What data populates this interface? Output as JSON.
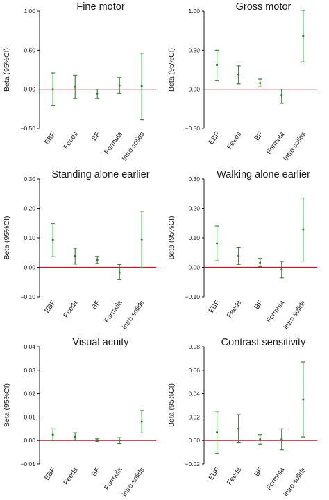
{
  "chart_data": [
    {
      "type": "errorbar",
      "title": "Fine motor",
      "ylabel": "Beta (95%CI)",
      "ylim": [
        -0.5,
        1.0
      ],
      "yticks": [
        1.0,
        0.5,
        0.0,
        -0.5
      ],
      "yticklabels": [
        "1.00",
        "0.50",
        "0.00",
        "−0.50"
      ],
      "reference_line": 0,
      "categories": [
        "EBF",
        "Feeds",
        "BF",
        "Formula",
        "Intro solids"
      ],
      "series": [
        {
          "estimate": [
            0.0,
            0.03,
            -0.06,
            0.05,
            0.04
          ],
          "lower": [
            -0.21,
            -0.12,
            -0.12,
            -0.05,
            -0.39
          ],
          "upper": [
            0.21,
            0.18,
            0.0,
            0.15,
            0.46
          ]
        }
      ]
    },
    {
      "type": "errorbar",
      "title": "Gross motor",
      "ylabel": "Beta (95%CI)",
      "ylim": [
        -0.5,
        1.0
      ],
      "yticks": [
        1.0,
        0.5,
        0.0,
        -0.5
      ],
      "yticklabels": [
        "1.00",
        "0.50",
        "0.00",
        "−0.50"
      ],
      "reference_line": 0,
      "categories": [
        "EBF",
        "Feeds",
        "BF",
        "Formula",
        "Intro solids"
      ],
      "series": [
        {
          "estimate": [
            0.31,
            0.19,
            0.08,
            -0.08,
            0.68
          ],
          "lower": [
            0.11,
            0.07,
            0.03,
            -0.18,
            0.35
          ],
          "upper": [
            0.5,
            0.3,
            0.13,
            0.0,
            1.01
          ]
        }
      ]
    },
    {
      "type": "errorbar",
      "title": "Standing alone earlier",
      "ylabel": "Beta (95%CI)",
      "ylim": [
        -0.1,
        0.3
      ],
      "yticks": [
        0.3,
        0.2,
        0.1,
        0.0,
        -0.1
      ],
      "yticklabels": [
        "0.30",
        "0.20",
        "0.10",
        "0.00",
        "−0.10"
      ],
      "reference_line": 0,
      "categories": [
        "EBF",
        "Feeds",
        "BF",
        "Formula",
        "Intro solids"
      ],
      "series": [
        {
          "estimate": [
            0.093,
            0.038,
            0.025,
            -0.018,
            0.095
          ],
          "lower": [
            0.036,
            0.011,
            0.013,
            -0.042,
            0.0
          ],
          "upper": [
            0.149,
            0.065,
            0.037,
            0.01,
            0.189
          ]
        }
      ]
    },
    {
      "type": "errorbar",
      "title": "Walking alone earlier",
      "ylabel": "Beta (95%CI)",
      "ylim": [
        -0.1,
        0.3
      ],
      "yticks": [
        0.3,
        0.2,
        0.1,
        0.0,
        -0.1
      ],
      "yticklabels": [
        "0.30",
        "0.20",
        "0.10",
        "0.00",
        "−0.10"
      ],
      "reference_line": 0,
      "categories": [
        "EBF",
        "Feeds",
        "BF",
        "Formula",
        "Intro solids"
      ],
      "series": [
        {
          "estimate": [
            0.081,
            0.039,
            0.016,
            -0.008,
            0.128
          ],
          "lower": [
            0.022,
            0.01,
            0.002,
            -0.036,
            0.021
          ],
          "upper": [
            0.14,
            0.068,
            0.03,
            0.02,
            0.235
          ]
        }
      ]
    },
    {
      "type": "errorbar",
      "title": "Visual acuity",
      "ylabel": "Beta (95%CI)",
      "ylim": [
        -0.01,
        0.04
      ],
      "yticks": [
        0.04,
        0.03,
        0.02,
        0.01,
        0.0,
        -0.01
      ],
      "yticklabels": [
        "0.04",
        "0.03",
        "0.02",
        "0.01",
        "0.00",
        "−0.01"
      ],
      "reference_line": 0,
      "categories": [
        "EBF",
        "Feeds",
        "BF",
        "Formula",
        "Intro solids"
      ],
      "series": [
        {
          "estimate": [
            0.0025,
            0.0015,
            0.0,
            0.0,
            0.008
          ],
          "lower": [
            0.0,
            0.0,
            -0.0005,
            -0.0013,
            0.0032
          ],
          "upper": [
            0.005,
            0.0033,
            0.0007,
            0.0012,
            0.0128
          ]
        }
      ]
    },
    {
      "type": "errorbar",
      "title": "Contrast sensitivity",
      "ylabel": "Beta (95%CI)",
      "ylim": [
        -0.02,
        0.08
      ],
      "yticks": [
        0.08,
        0.06,
        0.04,
        0.02,
        0.0,
        -0.02
      ],
      "yticklabels": [
        "0.08",
        "0.06",
        "0.04",
        "0.02",
        "0.00",
        "−0.02"
      ],
      "reference_line": 0,
      "categories": [
        "EBF",
        "Feeds",
        "BF",
        "Formula",
        "Intro solids"
      ],
      "series": [
        {
          "estimate": [
            0.007,
            0.01,
            0.001,
            0.001,
            0.035
          ],
          "lower": [
            -0.011,
            -0.002,
            -0.003,
            -0.008,
            0.003
          ],
          "upper": [
            0.025,
            0.022,
            0.005,
            0.01,
            0.067
          ]
        }
      ]
    }
  ],
  "colors": {
    "errorbar": "#2d7a2d",
    "reference_line": "#c8102e",
    "axis": "#000000"
  }
}
